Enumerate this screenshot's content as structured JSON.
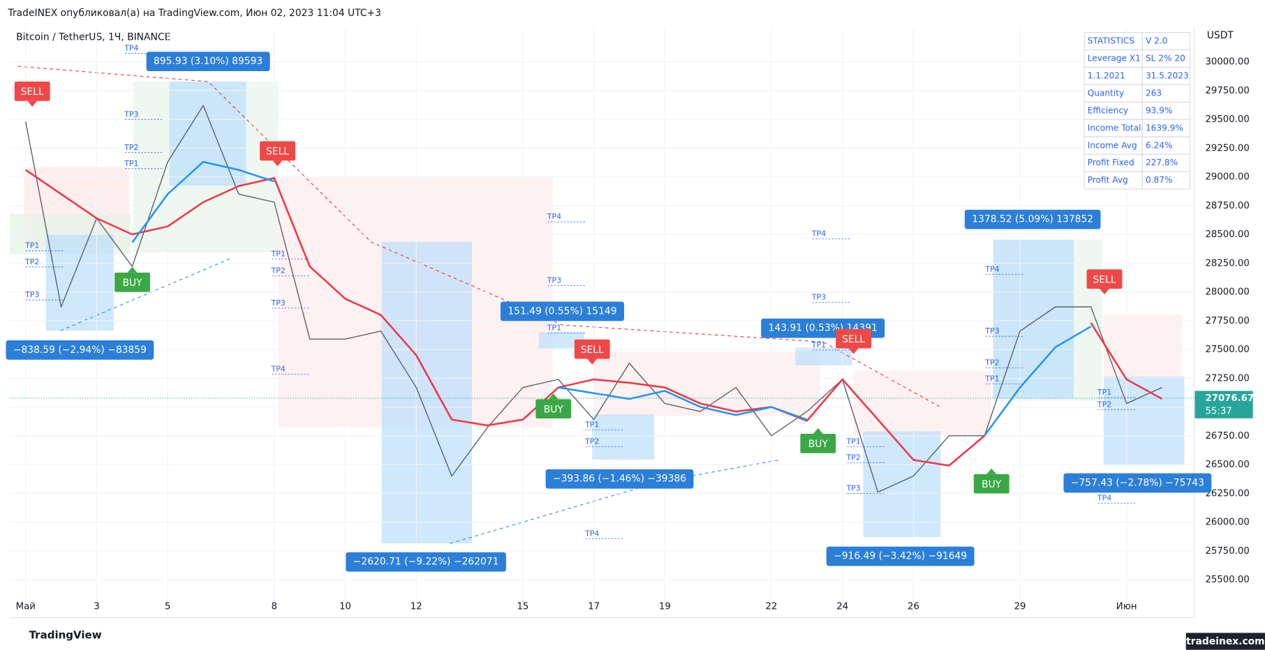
{
  "header": {
    "published": "TradeINEX опубликовал(а) на TradingView.com, Июн 02, 2023 11:04 UTC+3",
    "symbol": "Bitcoin / TetherUS, 1Ч, BINANCE",
    "currency": "USDT",
    "footer_logo": "TradingView",
    "watermark": "tradeinex.com"
  },
  "chart_data": {
    "type": "line",
    "x": [
      1,
      2,
      3,
      4,
      5,
      6,
      7,
      8,
      9,
      10,
      11,
      12,
      13,
      14,
      15,
      16,
      17,
      18,
      19,
      20,
      21,
      22,
      23,
      24,
      25,
      26,
      27,
      28,
      29,
      30,
      31,
      32,
      33
    ],
    "series": [
      {
        "color": "#5d606b",
        "values": [
          29480,
          27870,
          28640,
          28220,
          29130,
          29620,
          28850,
          28780,
          27590,
          27590,
          27660,
          27170,
          26400,
          26820,
          27170,
          27240,
          26890,
          27380,
          27030,
          26960,
          27170,
          26750,
          26960,
          27240,
          26260,
          26400,
          26750,
          26750,
          27660,
          27870,
          27870,
          27030,
          27170
        ]
      },
      {
        "color": "#f23645",
        "values": [
          29060,
          28850,
          28640,
          28500,
          28570,
          28780,
          28920,
          28990,
          28220,
          27940,
          27800,
          27450,
          26890,
          26840,
          26890,
          27170,
          27240,
          27210,
          27170,
          27030,
          26960,
          27000,
          26880,
          27240,
          26890,
          26540,
          26490,
          26750,
          null,
          null,
          27730,
          27240,
          27070
        ]
      },
      {
        "color": "#2196f3",
        "values": [
          null,
          null,
          null,
          28430,
          28850,
          29130,
          29060,
          28960,
          null,
          null,
          null,
          null,
          null,
          null,
          null,
          27170,
          27120,
          27070,
          27140,
          27000,
          26930,
          27000,
          26890,
          null,
          null,
          null,
          null,
          26750,
          27170,
          27520,
          27700,
          null,
          null
        ]
      }
    ],
    "xlim": [
      0.55,
      33.9
    ],
    "ylim": [
      25170,
      30290
    ],
    "xticks": [
      {
        "value": 1,
        "label": "Май"
      },
      3,
      5,
      8,
      10,
      12,
      15,
      17,
      19,
      22,
      24,
      26,
      29,
      {
        "value": 32,
        "label": "Июн"
      }
    ],
    "yticks": [
      {
        "value": 25500,
        "label": "25500.00"
      },
      {
        "value": 25750,
        "label": "25750.00"
      },
      {
        "value": 26000,
        "label": "26000.00"
      },
      {
        "value": 26250,
        "label": "26250.00"
      },
      {
        "value": 26500,
        "label": "26500.00"
      },
      {
        "value": 26750,
        "label": "26750.00"
      },
      {
        "value": 27000,
        "label": "27000.00"
      },
      {
        "value": 27250,
        "label": "27250.00"
      },
      {
        "value": 27500,
        "label": "27500.00"
      },
      {
        "value": 27750,
        "label": "27750.00"
      },
      {
        "value": 28000,
        "label": "28000.00"
      },
      {
        "value": 28250,
        "label": "28250.00"
      },
      {
        "value": 28500,
        "label": "28500.00"
      },
      {
        "value": 28750,
        "label": "28750.00"
      },
      {
        "value": 29000,
        "label": "29000.00"
      },
      {
        "value": 29250,
        "label": "29250.00"
      },
      {
        "value": 29500,
        "label": "29500.00"
      },
      {
        "value": 29750,
        "label": "29750.00"
      },
      {
        "value": 30000,
        "label": "30000.00"
      }
    ],
    "last_price": 27076.67,
    "countdown": "55:37"
  },
  "statistics": [
    [
      "STATISTICS",
      "V 2.0"
    ],
    [
      "Leverage X1",
      "SL 2% 20"
    ],
    [
      "1.1.2021",
      "31.5.2023"
    ],
    [
      "Quantity",
      "263"
    ],
    [
      "Efficiency",
      "93.9%"
    ],
    [
      "Income Total",
      "1639.9%"
    ],
    [
      "Income Avg",
      "6.24%"
    ],
    [
      "Profit Fixed",
      "227.8%"
    ],
    [
      "Profit Avg",
      "0.87%"
    ]
  ],
  "trades": [
    "895.93 (3.10%) 89593",
    "−838.59 (−2.94%) −83859",
    "151.49 (0.55%) 15149",
    "−2620.71 (−9.22%) −262071",
    "−393.86 (−1.46%) −39386",
    "143.91 (0.53%) 14391",
    "−916.49 (−3.42%) −91649",
    "1378.52 (5.09%) 137852",
    "−757.43 (−2.78%) −75743"
  ],
  "signals": [
    "SELL",
    "SELL",
    "SELL",
    "SELL",
    "SELL",
    "BUY",
    "BUY",
    "BUY",
    "BUY"
  ],
  "tp_labels": [
    "TP4",
    "TP3",
    "TP2",
    "TP1",
    "TP1",
    "TP2",
    "TP3",
    "TP4",
    "TP3",
    "TP1",
    "TP1",
    "TP2",
    "TP3",
    "TP4",
    "TP1",
    "TP2",
    "TP4",
    "TP4",
    "TP3",
    "TP1",
    "TP4",
    "TP3",
    "TP2",
    "TP1",
    "TP1",
    "TP2",
    "TP3",
    "TP1",
    "TP2",
    "TP4"
  ]
}
